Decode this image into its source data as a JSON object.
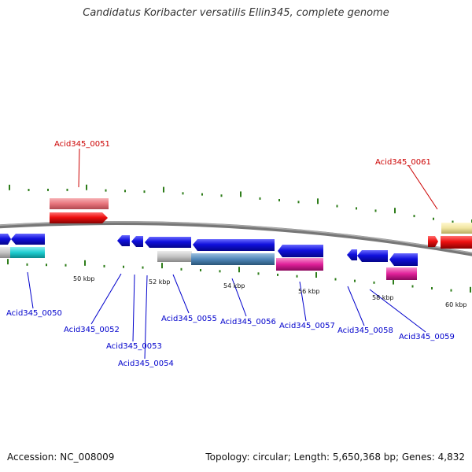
{
  "title": "Candidatus Koribacter versatilis Ellin345, complete genome",
  "footer": {
    "accession": "Accession: NC_008009",
    "summary": "Topology: circular; Length: 5,650,368 bp; Genes: 4,832"
  },
  "colors": {
    "red_label": "#cc0000",
    "blue_label": "#0000cc",
    "tick_green": "#2e7d1a",
    "gene_blue": "#1010dd",
    "gene_red": "#ee1111",
    "gene_pink": "#e8747c",
    "gene_cyan": "#1ccdd0",
    "gene_magenta": "#e0209a",
    "gene_grey": "#bdbdbd",
    "gene_steel": "#4f86b8",
    "gene_yellow": "#f0e4a0",
    "backbone": "#777777"
  },
  "ticks": [
    "50 kbp",
    "52 kbp",
    "54 kbp",
    "56 kbp",
    "58 kbp",
    "60 kbp"
  ],
  "labels_outer": [
    "Acid345_0051",
    "Acid345_0061"
  ],
  "labels_inner": [
    "Acid345_0050",
    "Acid345_0052",
    "Acid345_0053",
    "Acid345_0054",
    "Acid345_0055",
    "Acid345_0056",
    "Acid345_0057",
    "Acid345_0058",
    "Acid345_0059"
  ]
}
